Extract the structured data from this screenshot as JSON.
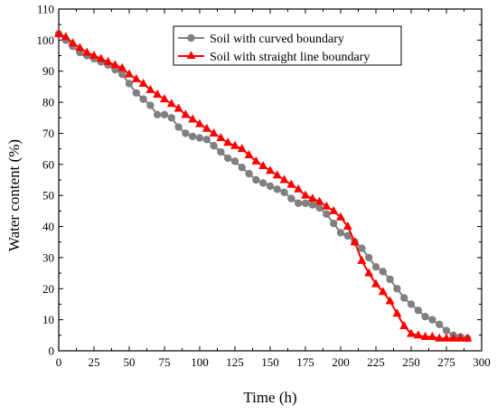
{
  "chart_data": {
    "type": "line",
    "title": "",
    "xlabel": "Time (h)",
    "ylabel": "Water content (%)",
    "xlim": [
      0,
      300
    ],
    "ylim": [
      0,
      110
    ],
    "xticks": [
      "0",
      "25",
      "50",
      "75",
      "100",
      "125",
      "150",
      "175",
      "200",
      "225",
      "250",
      "275",
      "300"
    ],
    "yticks": [
      "0",
      "10",
      "20",
      "30",
      "40",
      "50",
      "60",
      "70",
      "80",
      "90",
      "100",
      "110"
    ],
    "grid": false,
    "legend_position": "top-right",
    "series": [
      {
        "name": "Soil with curved boundary",
        "color": "#808080",
        "marker": "circle",
        "x": [
          0,
          5,
          10,
          15,
          20,
          25,
          30,
          35,
          40,
          45,
          50,
          55,
          60,
          65,
          70,
          75,
          80,
          85,
          90,
          95,
          100,
          105,
          110,
          115,
          120,
          125,
          130,
          135,
          140,
          145,
          150,
          155,
          160,
          165,
          170,
          175,
          180,
          185,
          190,
          195,
          200,
          205,
          210,
          215,
          220,
          225,
          230,
          235,
          240,
          245,
          250,
          255,
          260,
          265,
          270,
          275,
          280,
          285,
          290
        ],
        "y": [
          102,
          100,
          98,
          96,
          95,
          94,
          93,
          92,
          90.5,
          89,
          86,
          83,
          81,
          79,
          76,
          76,
          75,
          72,
          70,
          69,
          68.5,
          68,
          66,
          64,
          62,
          61,
          59,
          57,
          55,
          54,
          53,
          52,
          51,
          49,
          47.5,
          47.5,
          47,
          46,
          44,
          41,
          38,
          37,
          35,
          33,
          30,
          27,
          25.5,
          23,
          20,
          17,
          15,
          13,
          11,
          10,
          8.5,
          6.5,
          5,
          4.5,
          4
        ]
      },
      {
        "name": "Soil with straight line boundary",
        "color": "#ff0000",
        "marker": "triangle",
        "x": [
          0,
          5,
          10,
          15,
          20,
          25,
          30,
          35,
          40,
          45,
          50,
          55,
          60,
          65,
          70,
          75,
          80,
          85,
          90,
          95,
          100,
          105,
          110,
          115,
          120,
          125,
          130,
          135,
          140,
          145,
          150,
          155,
          160,
          165,
          170,
          175,
          180,
          185,
          190,
          195,
          200,
          205,
          210,
          215,
          220,
          225,
          230,
          235,
          240,
          245,
          250,
          255,
          260,
          265,
          270,
          275,
          280,
          285,
          290
        ],
        "y": [
          102,
          101,
          99,
          97.5,
          96,
          95,
          94,
          93,
          92,
          91,
          89,
          87.5,
          86,
          84,
          82.5,
          81,
          79.5,
          78,
          76,
          74.5,
          73,
          71.5,
          70,
          68.5,
          67,
          66,
          65,
          63,
          61,
          59.5,
          58,
          56.5,
          55,
          53.5,
          52,
          50,
          49,
          48,
          46.5,
          45,
          43,
          40,
          35,
          29,
          25,
          21.5,
          19,
          16,
          12,
          8,
          5.5,
          5,
          4.5,
          4.5,
          4,
          4,
          4,
          4,
          4
        ]
      }
    ]
  }
}
